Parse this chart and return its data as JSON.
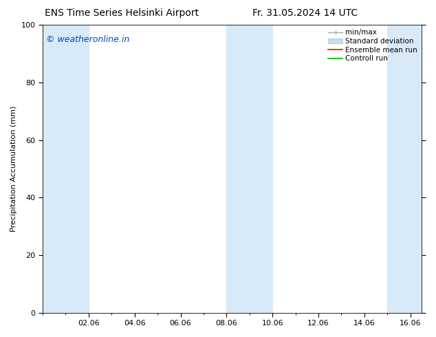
{
  "title_left": "ENS Time Series Helsinki Airport",
  "title_right": "Fr. 31.05.2024 14 UTC",
  "ylabel": "Precipitation Accumulation (mm)",
  "ylim": [
    0,
    100
  ],
  "yticks": [
    0,
    20,
    40,
    60,
    80,
    100
  ],
  "xtick_labels": [
    "02.06",
    "04.06",
    "06.06",
    "08.06",
    "10.06",
    "12.06",
    "14.06",
    "16.06"
  ],
  "xtick_positions": [
    2,
    4,
    6,
    8,
    10,
    12,
    14,
    16
  ],
  "watermark": "© weatheronline.in",
  "watermark_color": "#0044bb",
  "shaded_bands": [
    {
      "xmin": 0.0,
      "xmax": 2.0
    },
    {
      "xmin": 8.0,
      "xmax": 10.0
    },
    {
      "xmin": 15.0,
      "xmax": 16.5
    }
  ],
  "shade_color": "#d8eaf8",
  "background_color": "#ffffff",
  "legend_labels": [
    "min/max",
    "Standard deviation",
    "Ensemble mean run",
    "Controll run"
  ],
  "legend_colors": [
    "#999999",
    "#c8dff0",
    "#ff0000",
    "#00aa00"
  ],
  "xmin": 0,
  "xmax": 16.5,
  "title_fontsize": 10,
  "axis_label_fontsize": 8,
  "tick_fontsize": 8,
  "watermark_fontsize": 9,
  "legend_fontsize": 7.5
}
